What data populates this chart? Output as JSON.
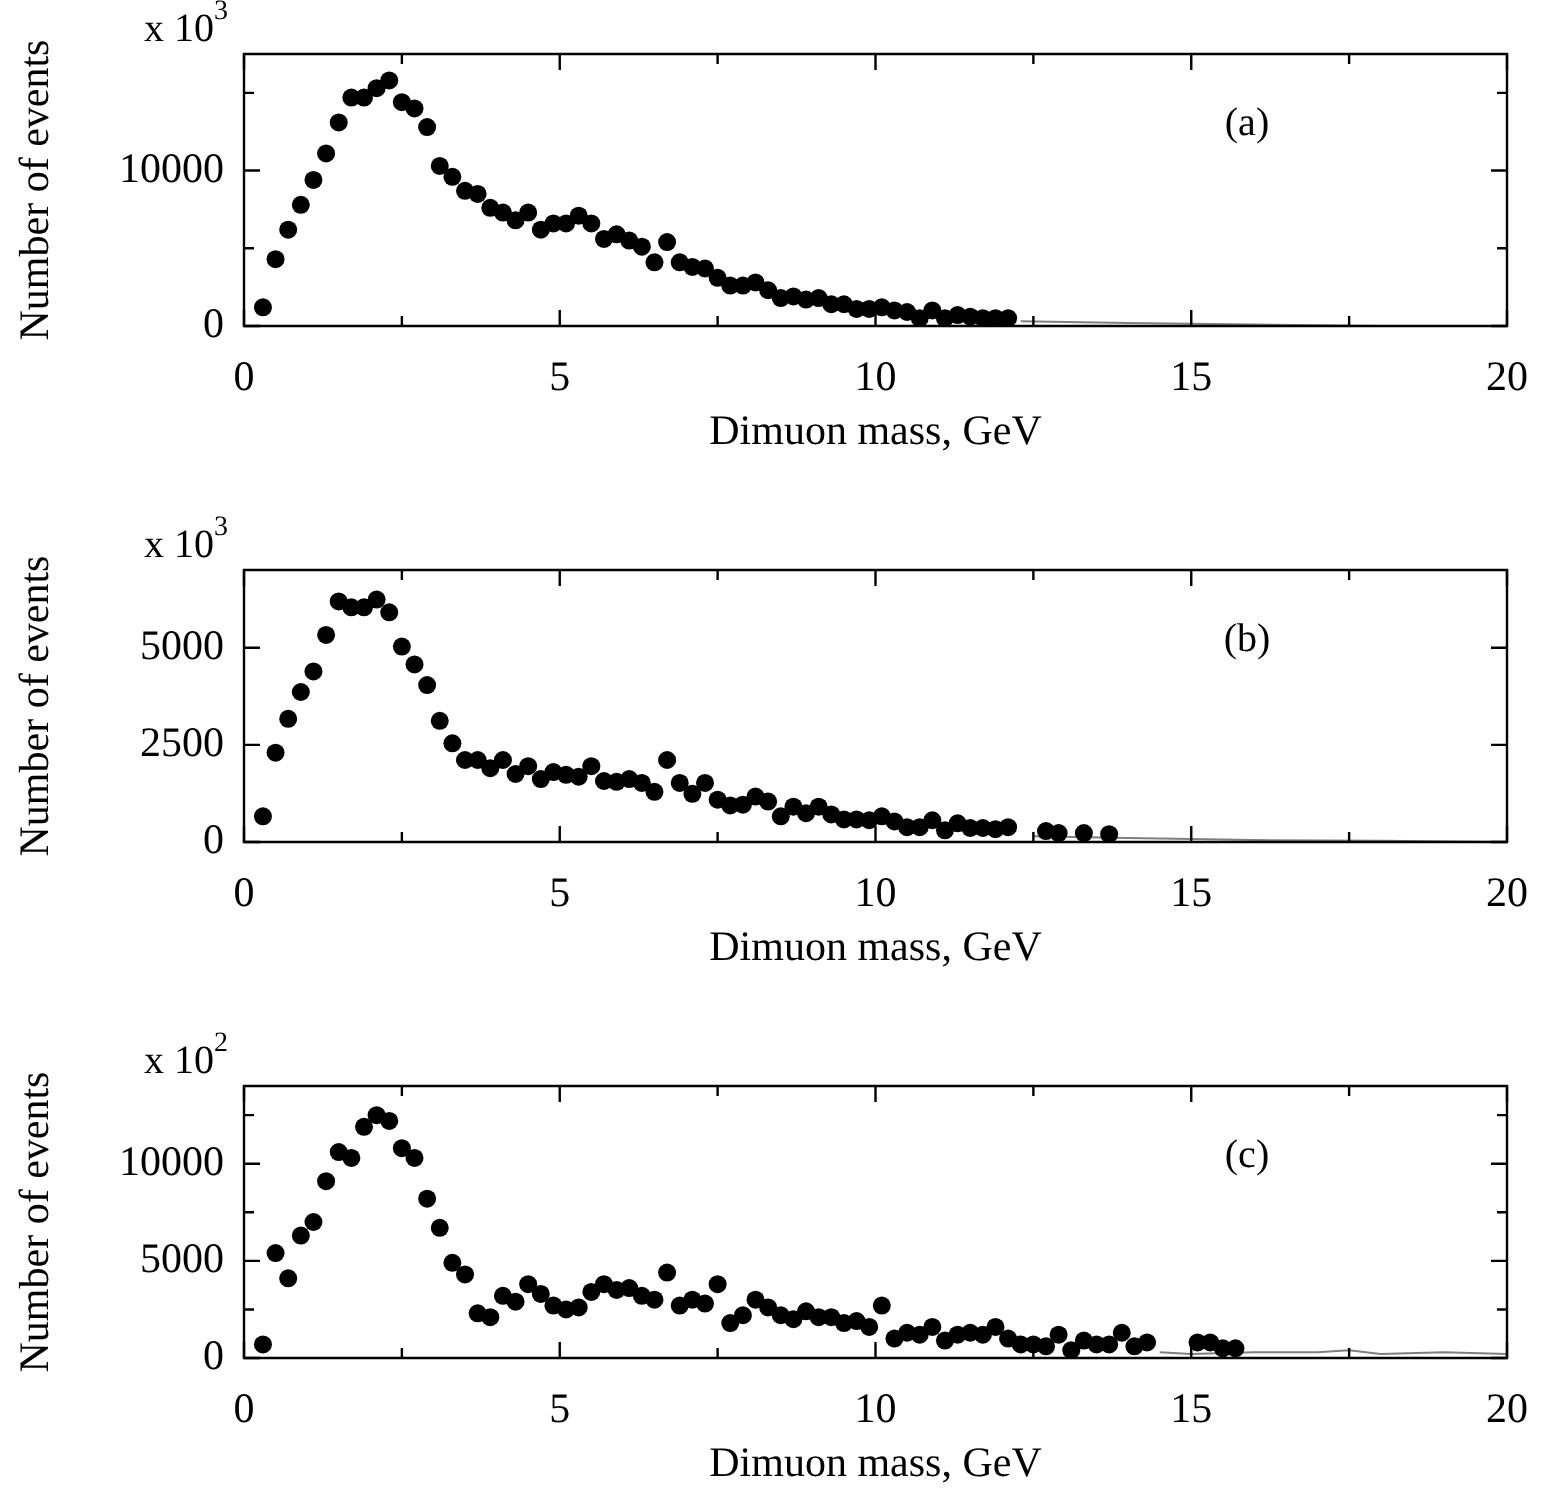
{
  "chart_data": [
    {
      "type": "scatter",
      "xlabel": "Dimuon mass, GeV",
      "ylabel": "Number of events",
      "annotations": [
        "x 10$^{3}$",
        "(a)"
      ],
      "xlim": [
        0,
        20
      ],
      "xticks": [
        0,
        {
          "value": 2.5,
          "label": null
        },
        5,
        {
          "value": 7.5,
          "label": null
        },
        10,
        {
          "value": 12.5,
          "label": null
        },
        15,
        {
          "value": 17.5,
          "label": null
        },
        20
      ],
      "ylim": [
        0,
        17500
      ],
      "yticks": [
        0,
        {
          "value": 5000,
          "label": null
        },
        10000,
        {
          "value": 15000,
          "label": null
        }
      ],
      "grid": false,
      "legend": false,
      "series": [
        {
          "marker": "circle",
          "color": "#000000",
          "x": [
            0.3,
            0.5,
            0.7,
            0.9,
            1.1,
            1.3,
            1.5,
            1.7,
            1.9,
            2.1,
            2.3,
            2.5,
            2.7,
            2.9,
            3.1,
            3.3,
            3.5,
            3.7,
            3.9,
            4.1,
            4.3,
            4.5,
            4.7,
            4.9,
            5.1,
            5.3,
            5.5,
            5.7,
            5.9,
            6.1,
            6.3,
            6.5,
            6.7,
            6.9,
            7.1,
            7.3,
            7.5,
            7.7,
            7.9,
            8.1,
            8.3,
            8.5,
            8.7,
            8.9,
            9.1,
            9.3,
            9.5,
            9.7,
            9.9,
            10.1,
            10.3,
            10.5,
            10.7,
            10.9,
            11.1,
            11.3,
            11.5,
            11.7,
            11.9,
            12.1
          ],
          "values": [
            1200,
            4300,
            6200,
            7800,
            9400,
            11100,
            13100,
            14700,
            14700,
            15300,
            15800,
            14400,
            14000,
            12800,
            10300,
            9600,
            8700,
            8500,
            7600,
            7300,
            6800,
            7300,
            6200,
            6600,
            6600,
            7100,
            6600,
            5600,
            5900,
            5500,
            5100,
            4100,
            5400,
            4100,
            3800,
            3700,
            3100,
            2600,
            2600,
            2800,
            2300,
            1800,
            1900,
            1700,
            1800,
            1400,
            1400,
            1100,
            1100,
            1200,
            1000,
            900,
            500,
            1000,
            500,
            700,
            600,
            500,
            500,
            500
          ]
        },
        {
          "type": "line",
          "marker": "none",
          "color": "#808080",
          "x": [
            12.3,
            14,
            16,
            18,
            20
          ],
          "values": [
            300,
            200,
            100,
            0,
            0
          ]
        }
      ]
    },
    {
      "type": "scatter",
      "xlabel": "Dimuon mass, GeV",
      "ylabel": "Number of events",
      "annotations": [
        "x 10$^{3}$",
        "(b)"
      ],
      "xlim": [
        0,
        20
      ],
      "xticks": [
        0,
        {
          "value": 2.5,
          "label": null
        },
        5,
        {
          "value": 7.5,
          "label": null
        },
        10,
        {
          "value": 12.5,
          "label": null
        },
        15,
        {
          "value": 17.5,
          "label": null
        },
        20
      ],
      "ylim": [
        0,
        7000
      ],
      "yticks": [
        0,
        2500,
        5000
      ],
      "grid": false,
      "legend": false,
      "series": [
        {
          "marker": "circle",
          "color": "#000000",
          "x": [
            0.3,
            0.5,
            0.7,
            0.9,
            1.1,
            1.3,
            1.5,
            1.7,
            1.9,
            2.1,
            2.3,
            2.5,
            2.7,
            2.9,
            3.1,
            3.3,
            3.5,
            3.7,
            3.9,
            4.1,
            4.3,
            4.5,
            4.7,
            4.9,
            5.1,
            5.3,
            5.5,
            5.7,
            5.9,
            6.1,
            6.3,
            6.5,
            6.7,
            6.9,
            7.1,
            7.3,
            7.5,
            7.7,
            7.9,
            8.1,
            8.3,
            8.5,
            8.7,
            8.9,
            9.1,
            9.3,
            9.5,
            9.7,
            9.9,
            10.1,
            10.3,
            10.5,
            10.7,
            10.9,
            11.1,
            11.3,
            11.5,
            11.7,
            11.9,
            12.1,
            12.7,
            12.9,
            13.3,
            13.7
          ],
          "values": [
            660,
            2300,
            3170,
            3860,
            4390,
            5330,
            6190,
            6040,
            6040,
            6240,
            5910,
            5030,
            4570,
            4040,
            3120,
            2540,
            2110,
            2110,
            1900,
            2110,
            1750,
            1950,
            1620,
            1800,
            1730,
            1680,
            1950,
            1570,
            1550,
            1620,
            1520,
            1290,
            2110,
            1520,
            1240,
            1520,
            1090,
            940,
            960,
            1170,
            1040,
            660,
            910,
            740,
            910,
            710,
            580,
            580,
            560,
            660,
            530,
            380,
            380,
            560,
            300,
            480,
            360,
            360,
            330,
            380,
            280,
            230,
            230,
            200
          ]
        },
        {
          "type": "line",
          "marker": "none",
          "color": "#808080",
          "x": [
            12.5,
            14,
            16,
            18,
            20
          ],
          "values": [
            150,
            100,
            50,
            30,
            0
          ]
        }
      ]
    },
    {
      "type": "scatter",
      "xlabel": "Dimuon mass, GeV",
      "ylabel": "Number of events",
      "annotations": [
        "x 10$^{2}$",
        "(c)"
      ],
      "xlim": [
        0,
        20
      ],
      "xticks": [
        0,
        {
          "value": 2.5,
          "label": null
        },
        5,
        {
          "value": 7.5,
          "label": null
        },
        10,
        {
          "value": 12.5,
          "label": null
        },
        15,
        {
          "value": 17.5,
          "label": null
        },
        20
      ],
      "ylim": [
        0,
        14000
      ],
      "yticks": [
        0,
        {
          "value": 2500,
          "label": null
        },
        5000,
        {
          "value": 7500,
          "label": null
        },
        10000,
        {
          "value": 12500,
          "label": null
        }
      ],
      "grid": false,
      "legend": false,
      "series": [
        {
          "marker": "circle",
          "color": "#000000",
          "x": [
            0.3,
            0.5,
            0.7,
            0.9,
            1.1,
            1.3,
            1.5,
            1.7,
            1.9,
            2.1,
            2.3,
            2.5,
            2.7,
            2.9,
            3.1,
            3.3,
            3.5,
            3.7,
            3.9,
            4.1,
            4.3,
            4.5,
            4.7,
            4.9,
            5.1,
            5.3,
            5.5,
            5.7,
            5.9,
            6.1,
            6.3,
            6.5,
            6.7,
            6.9,
            7.1,
            7.3,
            7.5,
            7.7,
            7.9,
            8.1,
            8.3,
            8.5,
            8.7,
            8.9,
            9.1,
            9.3,
            9.5,
            9.7,
            9.9,
            10.1,
            10.3,
            10.5,
            10.7,
            10.9,
            11.1,
            11.3,
            11.5,
            11.7,
            11.9,
            12.1,
            12.3,
            12.5,
            12.7,
            12.9,
            13.1,
            13.3,
            13.5,
            13.7,
            13.9,
            14.1,
            14.3,
            15.1,
            15.3,
            15.5,
            15.7
          ],
          "values": [
            700,
            5400,
            4100,
            6300,
            7000,
            9100,
            10600,
            10300,
            11900,
            12500,
            12200,
            10800,
            10300,
            8200,
            6700,
            4900,
            4300,
            2300,
            2100,
            3200,
            2900,
            3800,
            3300,
            2700,
            2500,
            2600,
            3400,
            3800,
            3500,
            3600,
            3200,
            3000,
            4400,
            2700,
            3000,
            2800,
            3800,
            1800,
            2200,
            3000,
            2600,
            2200,
            2000,
            2400,
            2100,
            2100,
            1800,
            1900,
            1600,
            2700,
            1000,
            1300,
            1200,
            1600,
            900,
            1200,
            1300,
            1200,
            1600,
            1000,
            700,
            700,
            600,
            1200,
            400,
            900,
            700,
            700,
            1300,
            600,
            800,
            800,
            800,
            500,
            500
          ]
        },
        {
          "type": "line",
          "marker": "none",
          "color": "#808080",
          "x": [
            14.5,
            15,
            16,
            17,
            17.5,
            18,
            19,
            20
          ],
          "values": [
            300,
            200,
            300,
            300,
            400,
            200,
            300,
            200
          ]
        }
      ]
    }
  ]
}
